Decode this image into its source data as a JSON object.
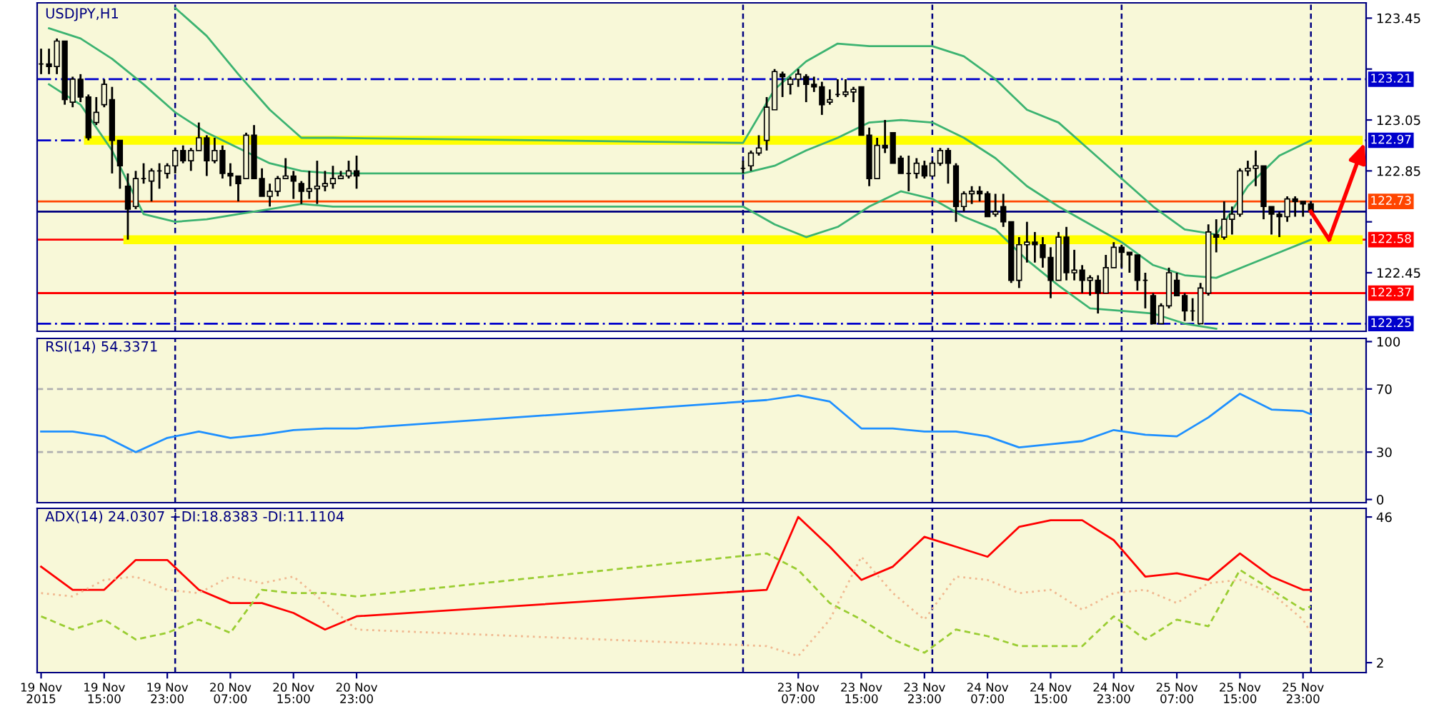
{
  "chart_data": [
    {
      "type": "candlestick",
      "title": "USDJPY,H1",
      "color": "#000000",
      "x": [
        "2015-11-19T07:00",
        "2015-11-19T08:00",
        "2015-11-19T09:00",
        "2015-11-19T10:00",
        "2015-11-19T11:00",
        "2015-11-19T12:00",
        "2015-11-19T13:00",
        "2015-11-19T14:00",
        "2015-11-19T15:00",
        "2015-11-19T16:00",
        "2015-11-19T17:00",
        "2015-11-19T18:00",
        "2015-11-19T19:00",
        "2015-11-19T20:00",
        "2015-11-19T21:00",
        "2015-11-19T22:00",
        "2015-11-19T23:00",
        "2015-11-20T00:00",
        "2015-11-20T01:00",
        "2015-11-20T02:00",
        "2015-11-20T03:00",
        "2015-11-20T04:00",
        "2015-11-20T05:00",
        "2015-11-20T06:00",
        "2015-11-20T07:00",
        "2015-11-20T08:00",
        "2015-11-20T09:00",
        "2015-11-20T10:00",
        "2015-11-20T11:00",
        "2015-11-20T12:00",
        "2015-11-20T13:00",
        "2015-11-20T14:00",
        "2015-11-20T15:00",
        "2015-11-20T16:00",
        "2015-11-20T17:00",
        "2015-11-20T18:00",
        "2015-11-20T19:00",
        "2015-11-20T20:00",
        "2015-11-20T21:00",
        "2015-11-20T22:00",
        "2015-11-20T23:00",
        "2015-11-23T00:00",
        "2015-11-23T01:00",
        "2015-11-23T02:00",
        "2015-11-23T03:00",
        "2015-11-23T04:00",
        "2015-11-23T05:00",
        "2015-11-23T06:00",
        "2015-11-23T07:00",
        "2015-11-23T08:00",
        "2015-11-23T09:00",
        "2015-11-23T10:00",
        "2015-11-23T11:00",
        "2015-11-23T12:00",
        "2015-11-23T13:00",
        "2015-11-23T14:00",
        "2015-11-23T15:00",
        "2015-11-23T16:00",
        "2015-11-23T17:00",
        "2015-11-23T18:00",
        "2015-11-23T19:00",
        "2015-11-23T20:00",
        "2015-11-23T21:00",
        "2015-11-23T22:00",
        "2015-11-23T23:00",
        "2015-11-24T00:00",
        "2015-11-24T01:00",
        "2015-11-24T02:00",
        "2015-11-24T03:00",
        "2015-11-24T04:00",
        "2015-11-24T05:00",
        "2015-11-24T06:00",
        "2015-11-24T07:00",
        "2015-11-24T08:00",
        "2015-11-24T09:00",
        "2015-11-24T10:00",
        "2015-11-24T11:00",
        "2015-11-24T12:00",
        "2015-11-24T13:00",
        "2015-11-24T14:00",
        "2015-11-24T15:00",
        "2015-11-24T16:00",
        "2015-11-24T17:00",
        "2015-11-24T18:00",
        "2015-11-24T19:00",
        "2015-11-24T20:00",
        "2015-11-24T21:00",
        "2015-11-24T22:00",
        "2015-11-24T23:00",
        "2015-11-25T00:00",
        "2015-11-25T01:00",
        "2015-11-25T02:00",
        "2015-11-25T03:00",
        "2015-11-25T04:00",
        "2015-11-25T05:00",
        "2015-11-25T06:00",
        "2015-11-25T07:00",
        "2015-11-25T08:00",
        "2015-11-25T09:00",
        "2015-11-25T10:00",
        "2015-11-25T11:00",
        "2015-11-25T12:00",
        "2015-11-25T13:00",
        "2015-11-25T14:00",
        "2015-11-25T15:00",
        "2015-11-25T16:00",
        "2015-11-25T17:00",
        "2015-11-25T18:00",
        "2015-11-25T19:00",
        "2015-11-25T20:00",
        "2015-11-25T21:00",
        "2015-11-25T22:00",
        "2015-11-25T23:00",
        "2015-11-26T00:00"
      ],
      "ohlc": [
        [
          123.27,
          123.33,
          123.23,
          123.27
        ],
        [
          123.27,
          123.33,
          123.23,
          123.26
        ],
        [
          123.26,
          123.37,
          123.23,
          123.36
        ],
        [
          123.36,
          123.36,
          123.11,
          123.13
        ],
        [
          123.12,
          123.22,
          123.1,
          123.21
        ],
        [
          123.21,
          123.23,
          123.12,
          123.14
        ],
        [
          123.14,
          123.15,
          122.97,
          122.98
        ],
        [
          123.04,
          123.14,
          123.03,
          123.08
        ],
        [
          123.11,
          123.21,
          123.1,
          123.19
        ],
        [
          123.13,
          123.18,
          122.84,
          122.97
        ],
        [
          122.97,
          122.97,
          122.78,
          122.87
        ],
        [
          122.79,
          122.84,
          122.58,
          122.7
        ],
        [
          122.71,
          122.85,
          122.7,
          122.82
        ],
        [
          122.82,
          122.88,
          122.8,
          122.82
        ],
        [
          122.81,
          122.86,
          122.73,
          122.85
        ],
        [
          122.85,
          122.88,
          122.78,
          122.85
        ],
        [
          122.84,
          122.88,
          122.82,
          122.87
        ],
        [
          122.87,
          122.94,
          122.84,
          122.93
        ],
        [
          122.93,
          122.95,
          122.88,
          122.89
        ],
        [
          122.89,
          122.94,
          122.85,
          122.93
        ],
        [
          122.93,
          123.04,
          122.93,
          122.98
        ],
        [
          122.98,
          122.99,
          122.83,
          122.89
        ],
        [
          122.89,
          122.98,
          122.88,
          122.93
        ],
        [
          122.93,
          122.95,
          122.82,
          122.84
        ],
        [
          122.84,
          122.88,
          122.79,
          122.83
        ],
        [
          122.83,
          122.83,
          122.73,
          122.8
        ],
        [
          122.82,
          123.0,
          122.82,
          122.99
        ],
        [
          122.99,
          123.03,
          122.82,
          122.82
        ],
        [
          122.82,
          122.86,
          122.75,
          122.75
        ],
        [
          122.75,
          122.8,
          122.71,
          122.77
        ],
        [
          122.77,
          122.83,
          122.75,
          122.82
        ],
        [
          122.82,
          122.9,
          122.82,
          122.83
        ],
        [
          122.83,
          122.85,
          122.74,
          122.81
        ],
        [
          122.8,
          122.81,
          122.72,
          122.77
        ],
        [
          122.77,
          122.85,
          122.74,
          122.78
        ],
        [
          122.78,
          122.89,
          122.72,
          122.79
        ],
        [
          122.79,
          122.85,
          122.77,
          122.8
        ],
        [
          122.8,
          122.87,
          122.78,
          122.82
        ],
        [
          122.82,
          122.85,
          122.82,
          122.83
        ],
        [
          122.83,
          122.89,
          122.82,
          122.85
        ],
        [
          122.85,
          122.91,
          122.78,
          122.83
        ],
        [
          122.86,
          122.89,
          122.84,
          122.86
        ],
        [
          122.87,
          122.93,
          122.85,
          122.92
        ],
        [
          122.92,
          122.99,
          122.91,
          122.94
        ],
        [
          122.97,
          123.14,
          122.93,
          123.1
        ],
        [
          123.09,
          123.25,
          123.09,
          123.24
        ],
        [
          123.23,
          123.24,
          123.14,
          123.22
        ],
        [
          123.19,
          123.22,
          123.15,
          123.21
        ],
        [
          123.21,
          123.25,
          123.18,
          123.23
        ],
        [
          123.22,
          123.23,
          123.12,
          123.19
        ],
        [
          123.19,
          123.22,
          123.16,
          123.18
        ],
        [
          123.18,
          123.2,
          123.07,
          123.11
        ],
        [
          123.12,
          123.17,
          123.11,
          123.13
        ],
        [
          123.15,
          123.21,
          123.14,
          123.15
        ],
        [
          123.15,
          123.21,
          123.14,
          123.16
        ],
        [
          123.16,
          123.18,
          123.12,
          123.17
        ],
        [
          123.18,
          123.18,
          122.99,
          122.99
        ],
        [
          122.99,
          123.02,
          122.79,
          122.82
        ],
        [
          122.82,
          122.98,
          122.82,
          122.95
        ],
        [
          122.95,
          123.05,
          122.92,
          122.94
        ],
        [
          123.0,
          123.0,
          122.88,
          122.88
        ],
        [
          122.9,
          122.91,
          122.84,
          122.84
        ],
        [
          122.84,
          122.91,
          122.77,
          122.84
        ],
        [
          122.84,
          122.9,
          122.82,
          122.88
        ],
        [
          122.87,
          122.89,
          122.82,
          122.83
        ],
        [
          122.83,
          122.89,
          122.83,
          122.88
        ],
        [
          122.88,
          122.94,
          122.87,
          122.93
        ],
        [
          122.93,
          122.94,
          122.8,
          122.88
        ],
        [
          122.87,
          122.88,
          122.65,
          122.71
        ],
        [
          122.71,
          122.77,
          122.69,
          122.76
        ],
        [
          122.76,
          122.79,
          122.72,
          122.77
        ],
        [
          122.77,
          122.79,
          122.73,
          122.76
        ],
        [
          122.76,
          122.77,
          122.67,
          122.67
        ],
        [
          122.68,
          122.76,
          122.67,
          122.69
        ],
        [
          122.71,
          122.76,
          122.63,
          122.65
        ],
        [
          122.65,
          122.65,
          122.41,
          122.42
        ],
        [
          122.42,
          122.59,
          122.39,
          122.56
        ],
        [
          122.56,
          122.65,
          122.49,
          122.57
        ],
        [
          122.57,
          122.61,
          122.49,
          122.56
        ],
        [
          122.56,
          122.59,
          122.47,
          122.51
        ],
        [
          122.51,
          122.55,
          122.35,
          122.42
        ],
        [
          122.42,
          122.61,
          122.42,
          122.59
        ],
        [
          122.59,
          122.63,
          122.42,
          122.45
        ],
        [
          122.45,
          122.54,
          122.42,
          122.46
        ],
        [
          122.46,
          122.48,
          122.37,
          122.42
        ],
        [
          122.42,
          122.44,
          122.36,
          122.43
        ],
        [
          122.42,
          122.44,
          122.29,
          122.37
        ],
        [
          122.37,
          122.52,
          122.37,
          122.47
        ],
        [
          122.47,
          122.57,
          122.47,
          122.55
        ],
        [
          122.55,
          122.56,
          122.47,
          122.53
        ],
        [
          122.53,
          122.53,
          122.45,
          122.52
        ],
        [
          122.52,
          122.52,
          122.38,
          122.42
        ],
        [
          122.42,
          122.45,
          122.31,
          122.42
        ],
        [
          122.36,
          122.37,
          122.25,
          122.25
        ],
        [
          122.25,
          122.33,
          122.25,
          122.32
        ],
        [
          122.32,
          122.47,
          122.31,
          122.45
        ],
        [
          122.42,
          122.45,
          122.36,
          122.36
        ],
        [
          122.36,
          122.37,
          122.26,
          122.3
        ],
        [
          122.3,
          122.35,
          122.26,
          122.3
        ],
        [
          122.25,
          122.41,
          122.25,
          122.39
        ],
        [
          122.37,
          122.64,
          122.36,
          122.61
        ],
        [
          122.6,
          122.66,
          122.53,
          122.59
        ],
        [
          122.59,
          122.73,
          122.58,
          122.66
        ],
        [
          122.66,
          122.71,
          122.6,
          122.68
        ],
        [
          122.68,
          122.86,
          122.67,
          122.85
        ],
        [
          122.85,
          122.89,
          122.83,
          122.86
        ],
        [
          122.86,
          122.93,
          122.79,
          122.87
        ],
        [
          122.87,
          122.87,
          122.66,
          122.71
        ],
        [
          122.71,
          122.71,
          122.6,
          122.68
        ],
        [
          122.68,
          122.69,
          122.59,
          122.67
        ],
        [
          122.67,
          122.75,
          122.65,
          122.74
        ],
        [
          122.74,
          122.75,
          122.67,
          122.73
        ],
        [
          122.73,
          122.73,
          122.67,
          122.72
        ],
        [
          122.72,
          122.73,
          122.68,
          122.69
        ]
      ],
      "series": [
        {
          "type": "line",
          "color": "#3cb371",
          "x": [
            "2015-11-20T00:00",
            "2015-11-20T04:00",
            "2015-11-20T08:00",
            "2015-11-20T12:00",
            "2015-11-20T16:00",
            "2015-11-20T20:00",
            "2015-11-23T00:00",
            "2015-11-23T04:00",
            "2015-11-23T08:00",
            "2015-11-23T12:00",
            "2015-11-23T16:00",
            "2015-11-23T20:00",
            "2015-11-24T00:00",
            "2015-11-24T04:00",
            "2015-11-24T08:00",
            "2015-11-24T12:00",
            "2015-11-24T16:00",
            "2015-11-24T20:00",
            "2015-11-25T00:00",
            "2015-11-25T04:00",
            "2015-11-25T08:00",
            "2015-11-25T12:00",
            "2015-11-25T16:00",
            "2015-11-25T20:00",
            "2015-11-26T00:00"
          ],
          "values": [
            123.49,
            123.38,
            123.23,
            123.09,
            122.98,
            122.98,
            122.96,
            123.17,
            123.28,
            123.35,
            123.34,
            123.34,
            123.34,
            123.3,
            123.21,
            123.09,
            123.04,
            122.93,
            122.82,
            122.71,
            122.62,
            122.6,
            122.79,
            122.91,
            122.97
          ]
        },
        {
          "type": "line",
          "color": "#3cb371",
          "x": [
            "2015-11-19T08:00",
            "2015-11-19T12:00",
            "2015-11-19T16:00",
            "2015-11-19T20:00",
            "2015-11-20T00:00",
            "2015-11-20T04:00",
            "2015-11-20T08:00",
            "2015-11-20T12:00",
            "2015-11-20T16:00",
            "2015-11-20T20:00",
            "2015-11-23T00:00",
            "2015-11-23T04:00",
            "2015-11-23T08:00",
            "2015-11-23T12:00",
            "2015-11-23T16:00",
            "2015-11-23T20:00",
            "2015-11-24T00:00",
            "2015-11-24T04:00",
            "2015-11-24T08:00",
            "2015-11-24T12:00",
            "2015-11-24T16:00",
            "2015-11-24T20:00",
            "2015-11-25T00:00",
            "2015-11-25T04:00",
            "2015-11-25T08:00",
            "2015-11-25T12:00",
            "2015-11-25T16:00",
            "2015-11-25T20:00",
            "2015-11-26T00:00"
          ],
          "values": [
            123.41,
            123.37,
            123.29,
            123.19,
            123.08,
            123.0,
            122.94,
            122.88,
            122.85,
            122.84,
            122.84,
            122.87,
            122.93,
            122.98,
            123.04,
            123.05,
            123.04,
            122.98,
            122.9,
            122.79,
            122.71,
            122.64,
            122.57,
            122.48,
            122.44,
            122.43,
            122.48,
            122.53,
            122.58
          ]
        },
        {
          "type": "line",
          "color": "#3cb371",
          "x": [
            "2015-11-19T08:00",
            "2015-11-19T12:00",
            "2015-11-19T16:00",
            "2015-11-19T20:00",
            "2015-11-20T00:00",
            "2015-11-20T04:00",
            "2015-11-20T08:00",
            "2015-11-20T12:00",
            "2015-11-20T16:00",
            "2015-11-20T20:00",
            "2015-11-23T00:00",
            "2015-11-23T04:00",
            "2015-11-23T08:00",
            "2015-11-23T12:00",
            "2015-11-23T16:00",
            "2015-11-23T20:00",
            "2015-11-24T00:00",
            "2015-11-24T04:00",
            "2015-11-24T08:00",
            "2015-11-24T12:00",
            "2015-11-24T16:00",
            "2015-11-24T20:00",
            "2015-11-25T00:00",
            "2015-11-25T04:00",
            "2015-11-25T08:00",
            "2015-11-25T12:00"
          ],
          "values": [
            123.19,
            123.11,
            122.93,
            122.68,
            122.65,
            122.66,
            122.68,
            122.7,
            122.72,
            122.71,
            122.71,
            122.64,
            122.59,
            122.63,
            122.71,
            122.77,
            122.74,
            122.67,
            122.62,
            122.5,
            122.4,
            122.31,
            122.3,
            122.29,
            122.25,
            122.23
          ]
        },
        {
          "type": "line",
          "color": "#ffff00",
          "x": [
            "2015-11-19T13:00",
            "2015-11-26T06:00"
          ],
          "values": [
            122.97,
            122.97
          ]
        },
        {
          "type": "line",
          "color": "#ffff00",
          "x": [
            "2015-11-19T18:00",
            "2015-11-26T06:00"
          ],
          "values": [
            122.58,
            122.58
          ]
        }
      ],
      "xlim": [
        "2015-11-19T06:30",
        "2015-11-26T07:00"
      ],
      "ylim": [
        122.22,
        123.51
      ],
      "yticks": [
        123.45,
        {
          "value": 123.25,
          "label": null
        },
        123.05,
        122.85,
        {
          "value": 122.65,
          "label": null
        },
        122.45
      ],
      "ref_lines": [
        {
          "axis": "y",
          "value": 123.21,
          "label": "123.21",
          "color": "#0000cc",
          "line_style": "dashdot"
        },
        {
          "axis": "y",
          "value": 122.97,
          "label": "122.97",
          "color": "#0000cc",
          "line_style": "dashdot"
        },
        {
          "axis": "y",
          "value": 122.73,
          "label": "122.73",
          "color": "#ff4500",
          "line_style": "solid"
        },
        {
          "axis": "y",
          "value": 122.69,
          "color": "#000080",
          "line_style": "solid"
        },
        {
          "axis": "y",
          "value": 122.58,
          "label": "122.58",
          "color": "#ff0000",
          "line_style": "solid"
        },
        {
          "axis": "y",
          "value": 122.37,
          "label": "122.37",
          "color": "#ff0000",
          "line_style": "solid"
        },
        {
          "axis": "y",
          "value": 122.25,
          "label": "122.25",
          "color": "#0000cc",
          "line_style": "dashdot"
        },
        {
          "axis": "x",
          "value": "2015-11-20T00:00",
          "color": "#000080",
          "line_style": "dashed"
        },
        {
          "axis": "x",
          "value": "2015-11-23T00:00",
          "color": "#000080",
          "line_style": "dashed"
        },
        {
          "axis": "x",
          "value": "2015-11-24T00:00",
          "color": "#000080",
          "line_style": "dashed"
        },
        {
          "axis": "x",
          "value": "2015-11-25T00:00",
          "color": "#000080",
          "line_style": "dashed"
        },
        {
          "axis": "x",
          "value": "2015-11-26T00:00",
          "color": "#000080",
          "line_style": "dashed"
        }
      ],
      "tick_labels": "y"
    },
    {
      "type": "line",
      "title": "RSI(14) 54.3371",
      "series": [
        {
          "color": "#1e90ff",
          "x": [
            "2015-11-19T07:00",
            "2015-11-19T11:00",
            "2015-11-19T15:00",
            "2015-11-19T19:00",
            "2015-11-19T23:00",
            "2015-11-20T03:00",
            "2015-11-20T07:00",
            "2015-11-20T11:00",
            "2015-11-20T15:00",
            "2015-11-20T19:00",
            "2015-11-20T23:00",
            "2015-11-23T03:00",
            "2015-11-23T07:00",
            "2015-11-23T11:00",
            "2015-11-23T15:00",
            "2015-11-23T19:00",
            "2015-11-23T23:00",
            "2015-11-24T03:00",
            "2015-11-24T07:00",
            "2015-11-24T11:00",
            "2015-11-24T15:00",
            "2015-11-24T19:00",
            "2015-11-24T23:00",
            "2015-11-25T03:00",
            "2015-11-25T07:00",
            "2015-11-25T11:00",
            "2015-11-25T15:00",
            "2015-11-25T19:00",
            "2015-11-25T23:00",
            "2015-11-26T00:00"
          ],
          "values": [
            43,
            43,
            40,
            30,
            39,
            43,
            39,
            41,
            44,
            45,
            45,
            63,
            66,
            62,
            45,
            45,
            43,
            43,
            40,
            33,
            35,
            37,
            44,
            41,
            40,
            52,
            67,
            57,
            56,
            54
          ]
        }
      ],
      "xlim": [
        "2015-11-19T06:30",
        "2015-11-26T07:00"
      ],
      "ylim": [
        -2,
        102
      ],
      "yticks": [
        0,
        30,
        70,
        100
      ],
      "ref_lines": [
        {
          "axis": "y",
          "value": 70,
          "color": "#b0b0b0",
          "line_style": "dashed"
        },
        {
          "axis": "y",
          "value": 30,
          "color": "#b0b0b0",
          "line_style": "dashed"
        },
        {
          "axis": "x",
          "value": "2015-11-20T00:00",
          "color": "#000080",
          "line_style": "dashed"
        },
        {
          "axis": "x",
          "value": "2015-11-23T00:00",
          "color": "#000080",
          "line_style": "dashed"
        },
        {
          "axis": "x",
          "value": "2015-11-24T00:00",
          "color": "#000080",
          "line_style": "dashed"
        },
        {
          "axis": "x",
          "value": "2015-11-25T00:00",
          "color": "#000080",
          "line_style": "dashed"
        },
        {
          "axis": "x",
          "value": "2015-11-26T00:00",
          "color": "#000080",
          "line_style": "dashed"
        }
      ],
      "tick_labels": "y"
    },
    {
      "type": "line",
      "title": "ADX(14) 24.0307 +DI:18.8383 -DI:11.1104",
      "series": [
        {
          "color": "#ff0000",
          "line_style": "solid",
          "x": [
            "2015-11-19T07:00",
            "2015-11-19T11:00",
            "2015-11-19T15:00",
            "2015-11-19T19:00",
            "2015-11-19T23:00",
            "2015-11-20T03:00",
            "2015-11-20T07:00",
            "2015-11-20T11:00",
            "2015-11-20T15:00",
            "2015-11-20T19:00",
            "2015-11-20T23:00",
            "2015-11-23T03:00",
            "2015-11-23T07:00",
            "2015-11-23T11:00",
            "2015-11-23T15:00",
            "2015-11-23T19:00",
            "2015-11-23T23:00",
            "2015-11-24T03:00",
            "2015-11-24T07:00",
            "2015-11-24T11:00",
            "2015-11-24T15:00",
            "2015-11-24T19:00",
            "2015-11-24T23:00",
            "2015-11-25T03:00",
            "2015-11-25T07:00",
            "2015-11-25T11:00",
            "2015-11-25T15:00",
            "2015-11-25T19:00",
            "2015-11-25T23:00",
            "2015-11-26T00:00"
          ],
          "values": [
            31,
            24,
            24,
            33,
            33,
            24,
            20,
            20,
            17,
            12,
            16,
            24,
            46,
            37,
            27,
            31,
            40,
            37,
            34,
            43,
            45,
            45,
            39,
            28,
            29,
            27,
            35,
            28,
            24,
            24
          ]
        },
        {
          "color": "#9acd32",
          "line_style": "dashed",
          "x": [
            "2015-11-19T07:00",
            "2015-11-19T11:00",
            "2015-11-19T15:00",
            "2015-11-19T19:00",
            "2015-11-19T23:00",
            "2015-11-20T03:00",
            "2015-11-20T07:00",
            "2015-11-20T11:00",
            "2015-11-20T15:00",
            "2015-11-20T19:00",
            "2015-11-20T23:00",
            "2015-11-23T03:00",
            "2015-11-23T07:00",
            "2015-11-23T11:00",
            "2015-11-23T15:00",
            "2015-11-23T19:00",
            "2015-11-23T23:00",
            "2015-11-24T03:00",
            "2015-11-24T07:00",
            "2015-11-24T11:00",
            "2015-11-24T15:00",
            "2015-11-24T19:00",
            "2015-11-24T23:00",
            "2015-11-25T03:00",
            "2015-11-25T07:00",
            "2015-11-25T11:00",
            "2015-11-25T15:00",
            "2015-11-25T19:00",
            "2015-11-25T23:00",
            "2015-11-26T00:00"
          ],
          "values": [
            16,
            12,
            15,
            9,
            11,
            15,
            11,
            24,
            23,
            23,
            22,
            35,
            30,
            20,
            15,
            9,
            5,
            12,
            10,
            7,
            7,
            7,
            16,
            9,
            15,
            13,
            30,
            24,
            18,
            19
          ]
        },
        {
          "color": "#f0b890",
          "line_style": "dotted",
          "x": [
            "2015-11-19T07:00",
            "2015-11-19T11:00",
            "2015-11-19T15:00",
            "2015-11-19T19:00",
            "2015-11-19T23:00",
            "2015-11-20T03:00",
            "2015-11-20T07:00",
            "2015-11-20T11:00",
            "2015-11-20T15:00",
            "2015-11-20T19:00",
            "2015-11-20T23:00",
            "2015-11-23T03:00",
            "2015-11-23T07:00",
            "2015-11-23T11:00",
            "2015-11-23T15:00",
            "2015-11-23T19:00",
            "2015-11-23T23:00",
            "2015-11-24T03:00",
            "2015-11-24T07:00",
            "2015-11-24T11:00",
            "2015-11-24T15:00",
            "2015-11-24T19:00",
            "2015-11-24T23:00",
            "2015-11-25T03:00",
            "2015-11-25T07:00",
            "2015-11-25T11:00",
            "2015-11-25T15:00",
            "2015-11-25T19:00",
            "2015-11-25T23:00",
            "2015-11-26T00:00"
          ],
          "values": [
            23,
            22,
            27,
            28,
            24,
            23,
            28,
            26,
            28,
            20,
            12,
            7,
            4,
            15,
            34,
            23,
            15,
            28,
            27,
            23,
            24,
            18,
            23,
            24,
            20,
            26,
            27,
            23,
            15,
            11
          ]
        }
      ],
      "xlim": [
        "2015-11-19T06:30",
        "2015-11-26T07:00"
      ],
      "ylim": [
        -1,
        48.6
      ],
      "yticks": [
        2,
        46
      ],
      "xticks": [
        {
          "value": "2015-11-19T07:00",
          "label": "19 Nov 2015"
        },
        {
          "value": "2015-11-19T15:00",
          "label": "19 Nov 15:00"
        },
        {
          "value": "2015-11-19T23:00",
          "label": "19 Nov 23:00"
        },
        {
          "value": "2015-11-20T07:00",
          "label": "20 Nov 07:00"
        },
        {
          "value": "2015-11-20T15:00",
          "label": "20 Nov 15:00"
        },
        {
          "value": "2015-11-20T23:00",
          "label": "20 Nov 23:00"
        },
        {
          "value": "2015-11-23T07:00",
          "label": "23 Nov 07:00"
        },
        {
          "value": "2015-11-23T15:00",
          "label": "23 Nov 15:00"
        },
        {
          "value": "2015-11-23T23:00",
          "label": "23 Nov 23:00"
        },
        {
          "value": "2015-11-24T07:00",
          "label": "24 Nov 07:00"
        },
        {
          "value": "2015-11-24T15:00",
          "label": "24 Nov 15:00"
        },
        {
          "value": "2015-11-24T23:00",
          "label": "24 Nov 23:00"
        },
        {
          "value": "2015-11-25T07:00",
          "label": "25 Nov 07:00"
        },
        {
          "value": "2015-11-25T15:00",
          "label": "25 Nov 15:00"
        },
        {
          "value": "2015-11-25T23:00",
          "label": "25 Nov 23:00"
        }
      ],
      "ref_lines": [
        {
          "axis": "x",
          "value": "2015-11-20T00:00",
          "color": "#000080",
          "line_style": "dashed"
        },
        {
          "axis": "x",
          "value": "2015-11-23T00:00",
          "color": "#000080",
          "line_style": "dashed"
        },
        {
          "axis": "x",
          "value": "2015-11-24T00:00",
          "color": "#000080",
          "line_style": "dashed"
        },
        {
          "axis": "x",
          "value": "2015-11-25T00:00",
          "color": "#000080",
          "line_style": "dashed"
        },
        {
          "axis": "x",
          "value": "2015-11-26T00:00",
          "color": "#000080",
          "line_style": "dashed"
        }
      ]
    }
  ]
}
